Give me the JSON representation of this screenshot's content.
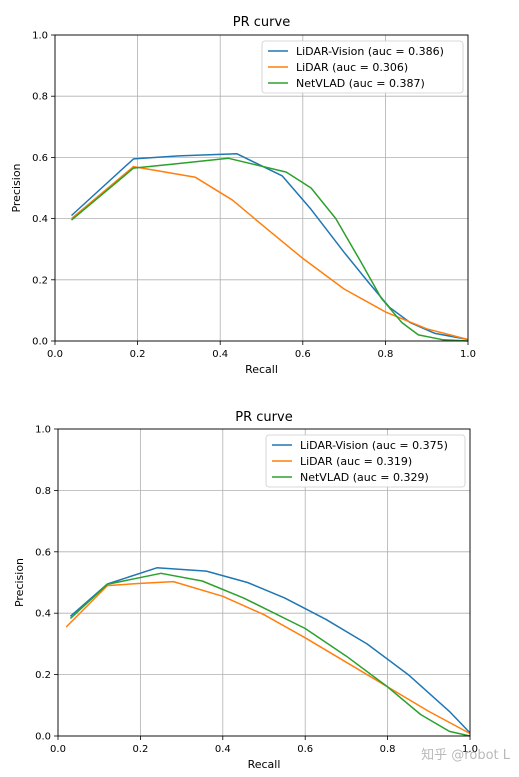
{
  "watermark": "知乎 @robot L",
  "chart_data": [
    {
      "type": "line",
      "title": "PR curve",
      "xlabel": "Recall",
      "ylabel": "Precision",
      "xlim": [
        0.0,
        1.0
      ],
      "ylim": [
        0.0,
        1.0
      ],
      "xticks": [
        "0.0",
        "0.2",
        "0.4",
        "0.6",
        "0.8",
        "1.0"
      ],
      "yticks": [
        "0.0",
        "0.2",
        "0.4",
        "0.6",
        "0.8",
        "1.0"
      ],
      "grid": true,
      "legend_position": "top-right",
      "series": [
        {
          "name": "LiDAR-Vision (auc = 0.386)",
          "color": "#1f77b4",
          "points": [
            [
              0.04,
              0.41
            ],
            [
              0.19,
              0.595
            ],
            [
              0.3,
              0.605
            ],
            [
              0.44,
              0.612
            ],
            [
              0.55,
              0.54
            ],
            [
              0.62,
              0.43
            ],
            [
              0.7,
              0.29
            ],
            [
              0.76,
              0.19
            ],
            [
              0.81,
              0.11
            ],
            [
              0.86,
              0.06
            ],
            [
              0.92,
              0.025
            ],
            [
              1.0,
              0.005
            ]
          ]
        },
        {
          "name": "LiDAR (auc = 0.306)",
          "color": "#ff7f0e",
          "points": [
            [
              0.04,
              0.4
            ],
            [
              0.19,
              0.57
            ],
            [
              0.34,
              0.535
            ],
            [
              0.43,
              0.46
            ],
            [
              0.51,
              0.37
            ],
            [
              0.6,
              0.27
            ],
            [
              0.7,
              0.17
            ],
            [
              0.8,
              0.095
            ],
            [
              0.9,
              0.04
            ],
            [
              1.0,
              0.005
            ]
          ]
        },
        {
          "name": "NetVLAD (auc = 0.387)",
          "color": "#2ca02c",
          "points": [
            [
              0.04,
              0.395
            ],
            [
              0.19,
              0.565
            ],
            [
              0.3,
              0.58
            ],
            [
              0.42,
              0.597
            ],
            [
              0.56,
              0.552
            ],
            [
              0.62,
              0.5
            ],
            [
              0.68,
              0.4
            ],
            [
              0.74,
              0.26
            ],
            [
              0.79,
              0.14
            ],
            [
              0.84,
              0.06
            ],
            [
              0.88,
              0.02
            ],
            [
              0.94,
              0.004
            ],
            [
              1.0,
              0.0
            ]
          ]
        }
      ]
    },
    {
      "type": "line",
      "title": "PR curve",
      "xlabel": "Recall",
      "ylabel": "Precision",
      "xlim": [
        0.0,
        1.0
      ],
      "ylim": [
        0.0,
        1.0
      ],
      "xticks": [
        "0.0",
        "0.2",
        "0.4",
        "0.6",
        "0.8",
        "1.0"
      ],
      "yticks": [
        "0.0",
        "0.2",
        "0.4",
        "0.6",
        "0.8",
        "1.0"
      ],
      "grid": true,
      "legend_position": "top-right",
      "series": [
        {
          "name": "LiDAR-Vision (auc = 0.375)",
          "color": "#1f77b4",
          "points": [
            [
              0.03,
              0.39
            ],
            [
              0.12,
              0.495
            ],
            [
              0.24,
              0.548
            ],
            [
              0.36,
              0.537
            ],
            [
              0.46,
              0.5
            ],
            [
              0.55,
              0.45
            ],
            [
              0.65,
              0.38
            ],
            [
              0.75,
              0.3
            ],
            [
              0.85,
              0.2
            ],
            [
              0.95,
              0.08
            ],
            [
              1.0,
              0.01
            ]
          ]
        },
        {
          "name": "LiDAR (auc = 0.319)",
          "color": "#ff7f0e",
          "points": [
            [
              0.02,
              0.355
            ],
            [
              0.12,
              0.49
            ],
            [
              0.2,
              0.497
            ],
            [
              0.28,
              0.503
            ],
            [
              0.4,
              0.455
            ],
            [
              0.5,
              0.395
            ],
            [
              0.6,
              0.32
            ],
            [
              0.7,
              0.24
            ],
            [
              0.8,
              0.16
            ],
            [
              0.9,
              0.08
            ],
            [
              1.0,
              0.008
            ]
          ]
        },
        {
          "name": "NetVLAD (auc = 0.329)",
          "color": "#2ca02c",
          "points": [
            [
              0.03,
              0.383
            ],
            [
              0.12,
              0.494
            ],
            [
              0.25,
              0.53
            ],
            [
              0.35,
              0.505
            ],
            [
              0.45,
              0.45
            ],
            [
              0.6,
              0.35
            ],
            [
              0.7,
              0.26
            ],
            [
              0.8,
              0.16
            ],
            [
              0.88,
              0.07
            ],
            [
              0.95,
              0.015
            ],
            [
              1.0,
              0.0
            ]
          ]
        }
      ]
    }
  ]
}
